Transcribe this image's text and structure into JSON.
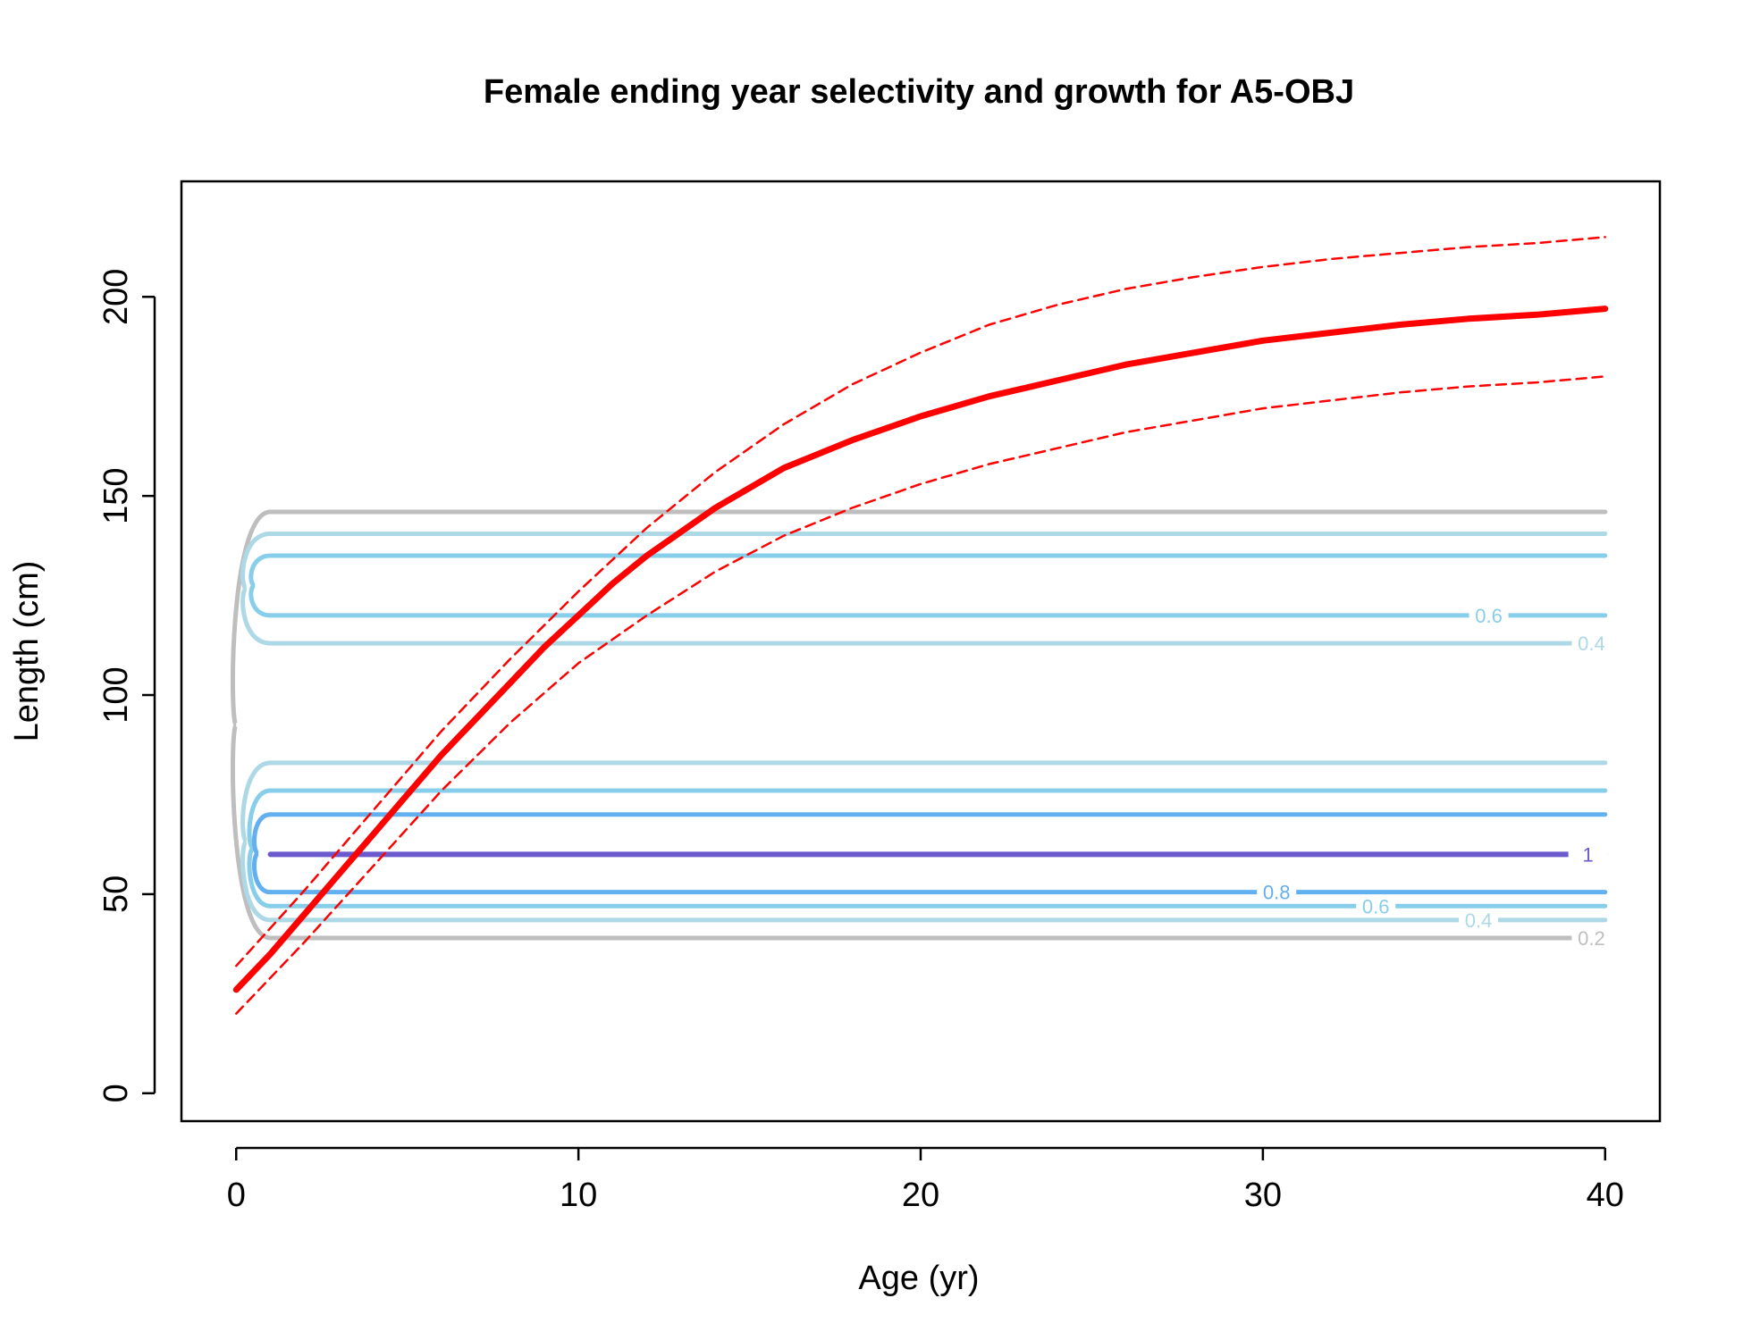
{
  "chart_data": {
    "type": "line",
    "title": "Female ending year selectivity and growth for A5-OBJ",
    "xlabel": "Age (yr)",
    "ylabel": "Length (cm)",
    "xlim": [
      -1.6,
      41.6
    ],
    "ylim": [
      -7,
      229
    ],
    "xticks": [
      0,
      10,
      20,
      30,
      40
    ],
    "yticks": [
      0,
      50,
      100,
      150,
      200
    ],
    "grid": false,
    "legend": "none",
    "colors": {
      "growth": "#ff0000",
      "ci": "#ff0000",
      "contour_0.2": "#bebebe",
      "contour_0.4": "#add8e6",
      "contour_0.6": "#87ceeb",
      "contour_0.8": "#63b0f0",
      "contour_1": "#6a5acd"
    },
    "series": [
      {
        "role": "mean",
        "x": [
          0,
          1,
          2,
          3,
          4,
          5,
          6,
          7,
          8,
          9,
          10,
          11,
          12,
          13,
          14,
          15,
          16,
          18,
          20,
          22,
          24,
          26,
          28,
          30,
          32,
          34,
          36,
          38,
          40
        ],
        "y": [
          26,
          35,
          45,
          55,
          65,
          75,
          85,
          94,
          103,
          112,
          120,
          128,
          135,
          141,
          147,
          152,
          157,
          164,
          170,
          175,
          179,
          183,
          186,
          189,
          191,
          193,
          194.5,
          195.5,
          197
        ]
      },
      {
        "role": "upper",
        "x": [
          0,
          2,
          4,
          6,
          8,
          10,
          12,
          14,
          16,
          18,
          20,
          22,
          24,
          26,
          28,
          30,
          32,
          34,
          36,
          38,
          40
        ],
        "y": [
          32,
          51,
          71,
          91,
          109,
          126,
          142,
          156,
          168,
          178,
          186,
          193,
          198,
          202,
          205,
          207.5,
          209.5,
          211,
          212.5,
          213.5,
          215
        ]
      },
      {
        "role": "lower",
        "x": [
          0,
          2,
          4,
          6,
          8,
          10,
          12,
          14,
          16,
          18,
          20,
          22,
          24,
          26,
          28,
          30,
          32,
          34,
          36,
          38,
          40
        ],
        "y": [
          20,
          38,
          57,
          76,
          93,
          108,
          120,
          131,
          140,
          147,
          153,
          158,
          162,
          166,
          169,
          172,
          174,
          176,
          177.5,
          178.5,
          180
        ]
      }
    ],
    "contours": [
      {
        "level": "0.2",
        "lengths": [
          39,
          146
        ],
        "label_x": 39.3,
        "label_y": 39
      },
      {
        "level": "0.4",
        "lengths": [
          43.5,
          83,
          113,
          140.5
        ],
        "label_x": 36.3,
        "label_y": 43.5
      },
      {
        "level": "0.6",
        "lengths": [
          47,
          76,
          120,
          135
        ],
        "label_x": 33.3,
        "label_y": 47
      },
      {
        "level": "0.8",
        "lengths": [
          50.5,
          70
        ],
        "label_x": 30.3,
        "label_y": 50.5
      },
      {
        "level": "1",
        "lengths": [
          60
        ],
        "label_x": 39.5,
        "label_y": 60
      }
    ],
    "contour_labels": [
      {
        "text": "0.2",
        "x": 39.6,
        "y": 39,
        "level": "0.2"
      },
      {
        "text": "0.4",
        "x": 36.3,
        "y": 43.5,
        "level": "0.4"
      },
      {
        "text": "0.6",
        "x": 33.3,
        "y": 47,
        "level": "0.6"
      },
      {
        "text": "0.8",
        "x": 30.4,
        "y": 50.5,
        "level": "0.8"
      },
      {
        "text": "0.4",
        "x": 39.6,
        "y": 113,
        "level": "0.4"
      },
      {
        "text": "0.6",
        "x": 36.6,
        "y": 120,
        "level": "0.6"
      },
      {
        "text": "1",
        "x": 39.5,
        "y": 60,
        "level": "1"
      }
    ]
  }
}
